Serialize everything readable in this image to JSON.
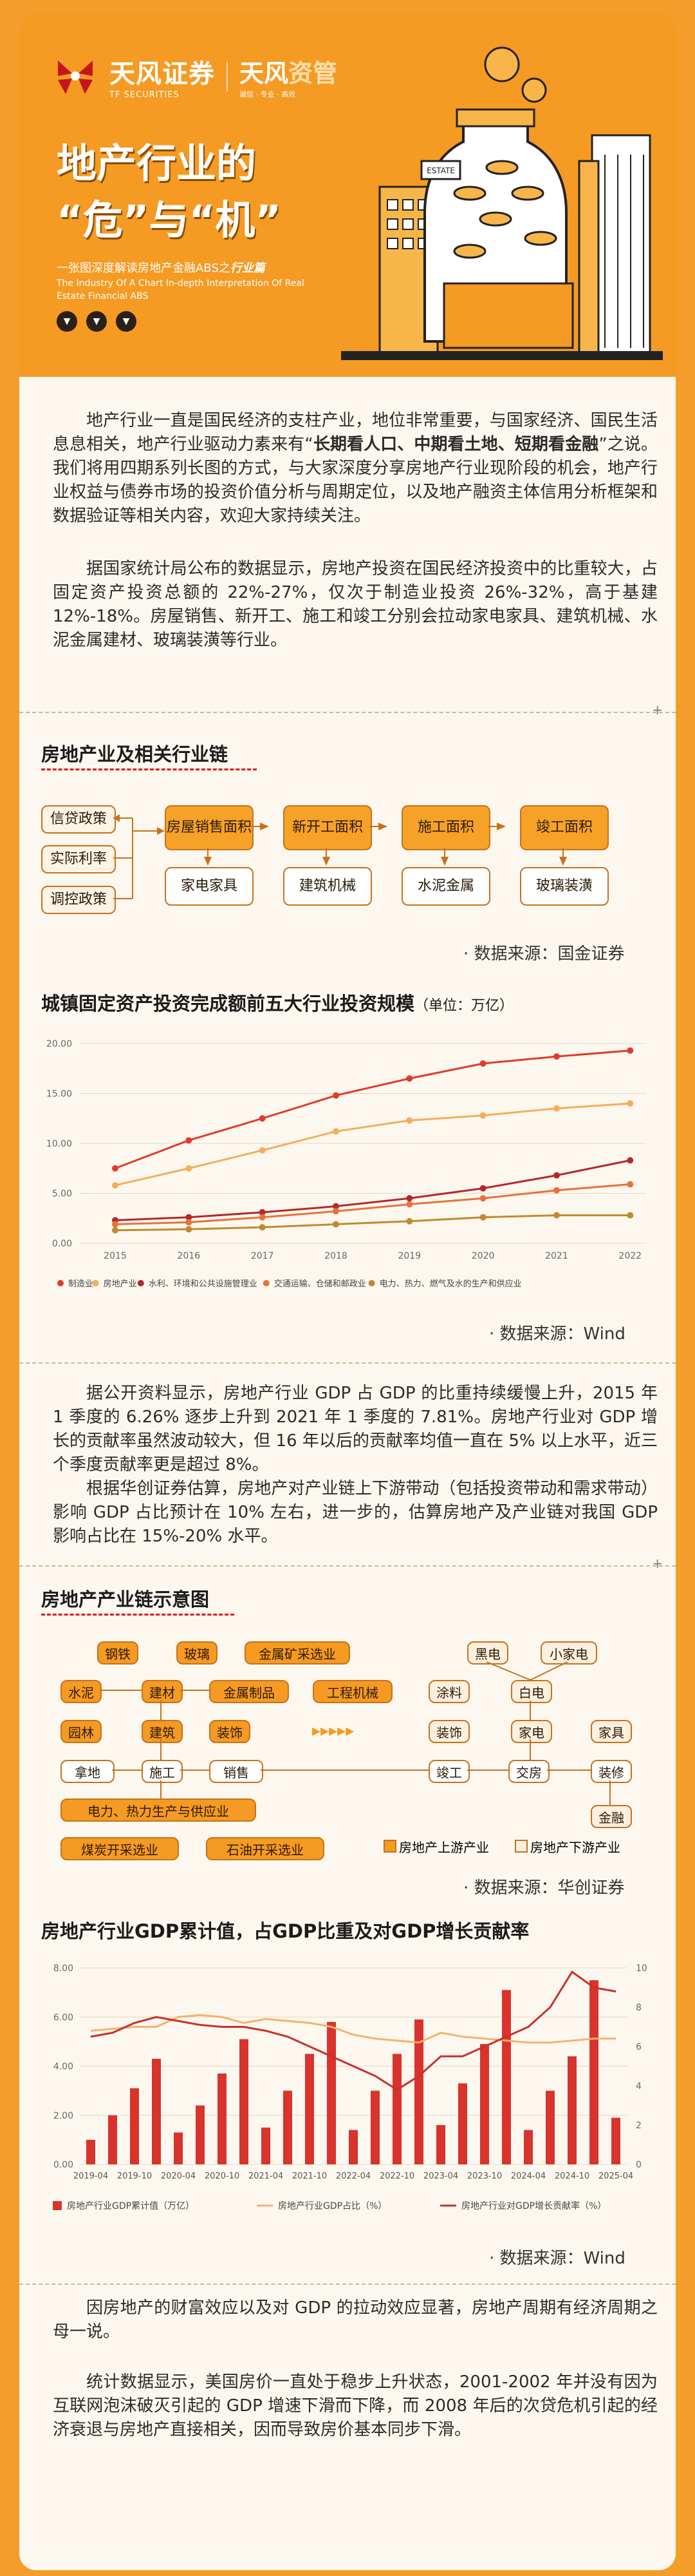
{
  "hero": {
    "logo_cn": "天风证券",
    "logo_en": "TF SECURITIES",
    "brand2": "天风",
    "brand2_accent": "资管",
    "brand2_sub": "诚信 · 专业 · 高效",
    "title_line1": "地产行业的",
    "title_line2": "“危”与“机”",
    "sub_cn_prefix": "一张图深度解读房地产金融ABS之",
    "sub_cn_bold": "行业篇",
    "sub_en": "The Industry Of A Chart In-depth Interpretation Of Real Estate Financial ABS",
    "dots": [
      "▼",
      "▼",
      "▼"
    ],
    "art_labels": [
      "ESTATE"
    ]
  },
  "intro": {
    "p1_a": "地产行业一直是国民经济的支柱产业，地位非常重要，与国家经济、国民生活息息相关，地产行业驱动力素来有“",
    "p1_b": "长期看人口、中期看土地、短期看金融",
    "p1_c": "”之说。我们将用四期系列长图的方式，与大家深度分享房地产行业现阶段的机会，地产行业权益与债券市场的投资价值分析与周期定位，以及地产融资主体信用分析框架和数据验证等相关内容，欢迎大家持续关注。",
    "p2": "据国家统计局公布的数据显示，房地产投资在国民经济投资中的比重较大，占固定资产投资总额的 22%-27%，仅次于制造业投资 26%-32%，高于基建 12%-18%。房屋销售、新开工、施工和竣工分别会拉动家电家具、建筑机械、水泥金属建材、玻璃装潢等行业。"
  },
  "chain1": {
    "title": "房地产业及相关行业链",
    "left_boxes": [
      "信贷政策",
      "实际利率",
      "调控政策"
    ],
    "stages": [
      "房屋销售面积",
      "新开工面积",
      "施工面积",
      "竣工面积"
    ],
    "industries": [
      "家电家具",
      "建筑机械",
      "水泥金属",
      "玻璃装潢"
    ],
    "source": "· 数据来源：国金证券"
  },
  "chart1": {
    "title": "城镇固定资产投资完成额前五大行业投资规模",
    "unit": "（单位：万亿）",
    "source": "· 数据来源：Wind"
  },
  "chart_data": [
    {
      "type": "line",
      "title": "城镇固定资产投资完成额前五大行业投资规模",
      "ylabel": "",
      "xlabel": "",
      "x": [
        "2015",
        "2016",
        "2017",
        "2018",
        "2019",
        "2020",
        "2021",
        "2022"
      ],
      "ylim": [
        0,
        20
      ],
      "yticks": [
        "0.00",
        "5.00",
        "10.00",
        "15.00",
        "20.00"
      ],
      "grid": true,
      "legend": "bottom",
      "series": [
        {
          "name": "制造业",
          "color": "#e23a2a",
          "values": [
            7.5,
            10.3,
            12.5,
            14.8,
            16.5,
            18.0,
            18.7,
            19.3
          ]
        },
        {
          "name": "房地产业",
          "color": "#f6ac5a",
          "values": [
            5.8,
            7.5,
            9.3,
            11.2,
            12.3,
            12.8,
            13.5,
            14.0
          ]
        },
        {
          "name": "水利、环境和公共设施管理业",
          "color": "#b6272b",
          "values": [
            2.3,
            2.6,
            3.1,
            3.7,
            4.5,
            5.5,
            6.8,
            8.3
          ]
        },
        {
          "name": "交通运输、仓储和邮政业",
          "color": "#e6733a",
          "values": [
            1.9,
            2.1,
            2.6,
            3.2,
            3.9,
            4.5,
            5.3,
            5.9
          ]
        },
        {
          "name": "电力、热力、燃气及水的生产和供应业",
          "color": "#c08a2e",
          "values": [
            1.3,
            1.4,
            1.6,
            1.9,
            2.2,
            2.6,
            2.8,
            2.8
          ]
        }
      ]
    },
    {
      "type": "bar",
      "title": "房地产行业GDP累计值，占GDP比重及对GDP增长贡献率",
      "xlabel": "",
      "ylabel": "",
      "categories": [
        "2019-04",
        "2019-07",
        "2019-10",
        "2020-01",
        "2020-04",
        "2020-07",
        "2020-10",
        "2021-01",
        "2021-04",
        "2021-07",
        "2021-10",
        "2022-01",
        "2022-04",
        "2022-07",
        "2022-10",
        "2023-01",
        "2023-04",
        "2023-07",
        "2023-10",
        "2024-01",
        "2024-04",
        "2024-07",
        "2024-10",
        "2025-01",
        "2025-04"
      ],
      "xtick_labels": [
        "2019-04",
        "2019-10",
        "2020-04",
        "2020-10",
        "2021-04",
        "2021-10",
        "2022-04",
        "2022-10",
        "2023-04",
        "2023-10",
        "2024-04",
        "2024-10",
        "2025-04"
      ],
      "ylim_left": [
        0,
        8
      ],
      "yticks_left": [
        "0.00",
        "2.00",
        "4.00",
        "6.00",
        "8.00"
      ],
      "ylim_right": [
        0,
        10
      ],
      "yticks_right": [
        "0",
        "2",
        "4",
        "6",
        "8",
        "10"
      ],
      "legend": "bottom",
      "series": [
        {
          "name": "房地产行业GDP累计值（万亿）",
          "color": "#d8332c",
          "axis": "left",
          "values": [
            1.0,
            2.0,
            3.1,
            4.3,
            1.3,
            2.4,
            3.7,
            5.1,
            1.5,
            3.0,
            4.5,
            5.8,
            1.4,
            3.0,
            4.5,
            5.9,
            1.6,
            3.3,
            4.9,
            7.1,
            1.4,
            3.0,
            4.4,
            7.5,
            1.9
          ]
        },
        {
          "name": "房地产行业GDP占比（%）",
          "color": "#f6b26b",
          "axis": "right",
          "type": "line",
          "values": [
            6.8,
            6.9,
            7.0,
            7.0,
            7.5,
            7.6,
            7.5,
            7.2,
            7.4,
            7.3,
            7.2,
            7.0,
            6.6,
            6.4,
            6.3,
            6.2,
            6.7,
            6.5,
            6.4,
            6.3,
            6.2,
            6.2,
            6.3,
            6.4,
            6.4
          ]
        },
        {
          "name": "房地产行业对GDP增长贡献率（%）",
          "color": "#c9302c",
          "axis": "right",
          "type": "line",
          "values": [
            6.5,
            6.7,
            7.2,
            7.5,
            7.3,
            7.1,
            7.0,
            7.0,
            6.8,
            6.5,
            6.0,
            5.5,
            5.0,
            4.5,
            3.8,
            4.5,
            5.5,
            5.5,
            6.0,
            6.5,
            7.0,
            8.0,
            9.8,
            9.0,
            8.8
          ]
        }
      ]
    }
  ],
  "gdp_text": {
    "p1": "据公开资料显示，房地产行业 GDP 占 GDP 的比重持续缓慢上升，2015 年 1 季度的 6.26% 逐步上升到 2021 年 1 季度的 7.81%。房地产行业对 GDP 增长的贡献率虽然波动较大，但 16 年以后的贡献率均值一直在 5% 以上水平，近三个季度贡献率更是超过 8%。",
    "p2": "根据华创证券估算，房地产对产业链上下游带动（包括投资带动和需求带动）影响 GDP 占比预计在 10% 左右，进一步的，估算房地产及产业链对我国 GDP 影响占比在 15%-20% 水平。"
  },
  "chain2": {
    "title": "房地产产业链示意图",
    "row1": [
      "钢铁",
      "玻璃",
      "金属矿采选业"
    ],
    "row2": [
      "水泥",
      "建材",
      "金属制品",
      "工程机械"
    ],
    "row3": [
      "园林",
      "建筑",
      "装饰"
    ],
    "row4": [
      "拿地",
      "施工",
      "销售"
    ],
    "power": "电力、热力生产与供应业",
    "row6": [
      "煤炭开采选业",
      "石油开采选业"
    ],
    "right_row1": [
      "黑电",
      "小家电"
    ],
    "right_row2": [
      "涂料",
      "白电"
    ],
    "right_row3": [
      "装饰",
      "家电",
      "家具"
    ],
    "right_row4": [
      "竣工",
      "交房",
      "装修"
    ],
    "finance": "金融",
    "arrows": "▸▸▸▸▸",
    "legend_up": "房地产上游产业",
    "legend_down": "房地产下游产业",
    "source": "· 数据来源：华创证券"
  },
  "chart2": {
    "title": "房地产行业GDP累计值，占GDP比重及对GDP增长贡献率",
    "source": "· 数据来源：Wind"
  },
  "outro": {
    "p1": "因房地产的财富效应以及对 GDP 的拉动效应显著，房地产周期有经济周期之母一说。",
    "p2": "统计数据显示，美国房价一直处于稳步上升状态，2001-2002 年并没有因为互联网泡沫破灭引起的 GDP 增速下滑而下降，而 2008 年后的次贷危机引起的经济衰退与房地产直接相关，因而导致房价基本同步下滑。"
  },
  "plus": "+"
}
